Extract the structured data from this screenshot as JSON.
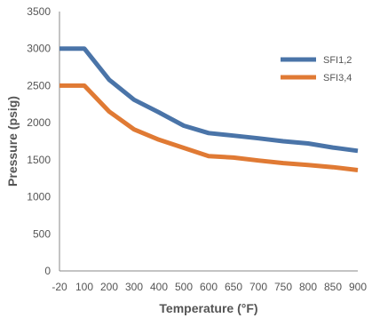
{
  "chart_data": {
    "type": "line",
    "title": "",
    "xlabel": "Temperature (°F)",
    "ylabel": "Pressure (psig)",
    "xlim": [
      -20,
      900
    ],
    "ylim": [
      0,
      3500
    ],
    "grid": false,
    "legend_placement": "top-right",
    "x_ticks": [
      {
        "value": -20,
        "label": "-20"
      },
      {
        "value": 100,
        "label": "100"
      },
      {
        "value": 200,
        "label": "200"
      },
      {
        "value": 300,
        "label": "300"
      },
      {
        "value": 400,
        "label": "400"
      },
      {
        "value": 500,
        "label": "500"
      },
      {
        "value": 600,
        "label": "600"
      },
      {
        "value": 650,
        "label": "650"
      },
      {
        "value": 700,
        "label": "700"
      },
      {
        "value": 750,
        "label": "750"
      },
      {
        "value": 800,
        "label": "800"
      },
      {
        "value": 850,
        "label": "850"
      },
      {
        "value": 900,
        "label": "900"
      }
    ],
    "y_ticks": [
      0,
      500,
      1000,
      1500,
      2000,
      2500,
      3000,
      3500
    ],
    "series": [
      {
        "name": "SFI1,2",
        "color": "#4a74a8",
        "x": [
          -20,
          100,
          200,
          300,
          400,
          500,
          600,
          650,
          700,
          750,
          800,
          850,
          900
        ],
        "values": [
          3000,
          3000,
          2580,
          2310,
          2140,
          1960,
          1860,
          1825,
          1790,
          1750,
          1720,
          1665,
          1620
        ]
      },
      {
        "name": "SFI3,4",
        "color": "#e07a34",
        "x": [
          -20,
          100,
          200,
          300,
          400,
          500,
          600,
          650,
          700,
          750,
          800,
          850,
          900
        ],
        "values": [
          2500,
          2500,
          2150,
          1910,
          1770,
          1660,
          1550,
          1530,
          1490,
          1455,
          1430,
          1400,
          1360
        ]
      }
    ]
  }
}
